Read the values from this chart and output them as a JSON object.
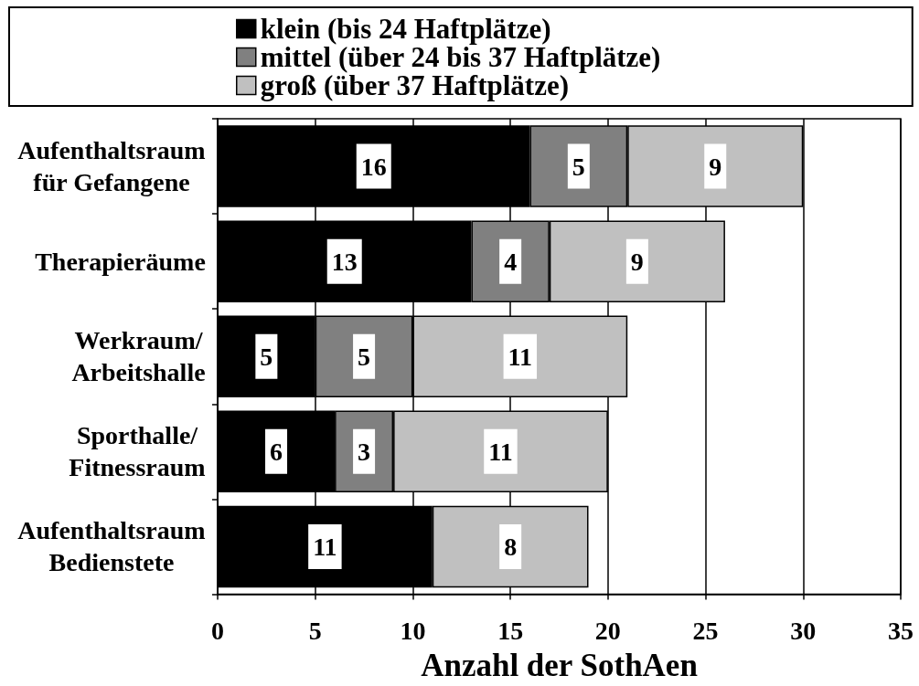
{
  "chart_data": {
    "type": "bar",
    "orientation": "horizontal",
    "stacked": true,
    "categories": [
      "Aufenthaltsraum\nfür Gefangene",
      "Therapieräume",
      "Werkraum/\nArbeitshalle",
      "Sporthalle/\nFitnessraum",
      "Aufenthaltsraum\nBedienstete"
    ],
    "series": [
      {
        "name": "klein (bis 24 Haftplätze)",
        "color": "#000000",
        "values": [
          16,
          13,
          5,
          6,
          11
        ]
      },
      {
        "name": "mittel (über 24 bis 37 Haftplätze)",
        "color": "#808080",
        "values": [
          5,
          4,
          5,
          3,
          null
        ]
      },
      {
        "name": "groß (über 37 Haftplätze)",
        "color": "#c0c0c0",
        "values": [
          9,
          9,
          11,
          11,
          8
        ]
      }
    ],
    "xlabel": "Anzahl der SothAen",
    "xlim": [
      0,
      35
    ],
    "xticks": [
      0,
      5,
      10,
      15,
      20,
      25,
      30,
      35
    ],
    "grid": "x",
    "legend": "top",
    "data_labels": true
  }
}
